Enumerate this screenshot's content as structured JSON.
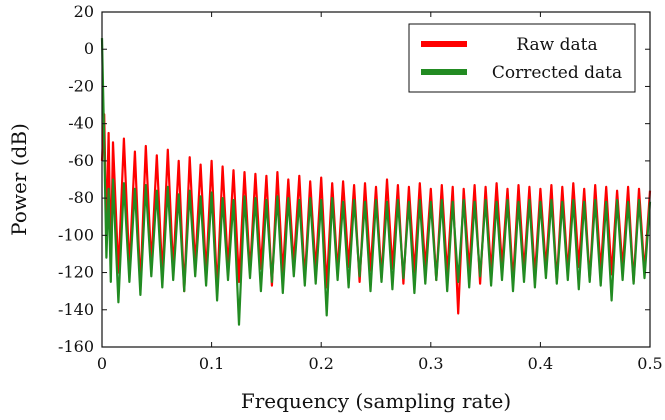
{
  "chart_data": {
    "type": "line",
    "title": "",
    "xlabel": "Frequency (sampling rate)",
    "ylabel": "Power (dB)",
    "xlim": [
      0,
      0.5
    ],
    "ylim": [
      -160,
      20
    ],
    "x_ticks": [
      0,
      0.1,
      0.2,
      0.3,
      0.4,
      0.5
    ],
    "y_ticks": [
      -160,
      -140,
      -120,
      -100,
      -80,
      -60,
      -40,
      -20,
      0,
      20
    ],
    "x_tick_labels": [
      "0",
      "0.1",
      "0.2",
      "0.3",
      "0.4",
      "0.5"
    ],
    "y_tick_labels": [
      "-160",
      "-140",
      "-120",
      "-100",
      "-80",
      "-60",
      "-40",
      "-20",
      "0",
      "20"
    ],
    "grid": false,
    "legend_position": "top-right",
    "series": [
      {
        "name": "Raw data",
        "color": "#ff0000",
        "x": [
          0,
          0.002,
          0.004,
          0.006,
          0.008,
          0.01,
          0.015,
          0.02,
          0.025,
          0.03,
          0.035,
          0.04,
          0.045,
          0.05,
          0.055,
          0.06,
          0.065,
          0.07,
          0.075,
          0.08,
          0.085,
          0.09,
          0.095,
          0.1,
          0.105,
          0.11,
          0.115,
          0.12,
          0.125,
          0.13,
          0.135,
          0.14,
          0.145,
          0.15,
          0.155,
          0.16,
          0.165,
          0.17,
          0.175,
          0.18,
          0.185,
          0.19,
          0.195,
          0.2,
          0.205,
          0.21,
          0.215,
          0.22,
          0.225,
          0.23,
          0.235,
          0.24,
          0.245,
          0.25,
          0.255,
          0.26,
          0.265,
          0.27,
          0.275,
          0.28,
          0.285,
          0.29,
          0.295,
          0.3,
          0.305,
          0.31,
          0.315,
          0.32,
          0.325,
          0.33,
          0.335,
          0.34,
          0.345,
          0.35,
          0.355,
          0.36,
          0.365,
          0.37,
          0.375,
          0.38,
          0.385,
          0.39,
          0.395,
          0.4,
          0.405,
          0.41,
          0.415,
          0.42,
          0.425,
          0.43,
          0.435,
          0.44,
          0.445,
          0.45,
          0.455,
          0.46,
          0.465,
          0.47,
          0.475,
          0.48,
          0.485,
          0.49,
          0.495,
          0.5
        ],
        "y": [
          -60,
          -35,
          -100,
          -45,
          -115,
          -50,
          -120,
          -48,
          -118,
          -55,
          -128,
          -52,
          -116,
          -57,
          -122,
          -54,
          -119,
          -60,
          -130,
          -58,
          -117,
          -62,
          -121,
          -60,
          -130,
          -63,
          -118,
          -65,
          -125,
          -66,
          -120,
          -67,
          -118,
          -68,
          -127,
          -66,
          -121,
          -70,
          -116,
          -68,
          -124,
          -71,
          -119,
          -69,
          -128,
          -72,
          -120,
          -71,
          -117,
          -73,
          -125,
          -72,
          -119,
          -74,
          -123,
          -70,
          -118,
          -73,
          -126,
          -74,
          -120,
          -72,
          -118,
          -75,
          -124,
          -73,
          -121,
          -74,
          -142,
          -75,
          -119,
          -73,
          -126,
          -74,
          -120,
          -72,
          -117,
          -75,
          -125,
          -73,
          -119,
          -74,
          -122,
          -75,
          -118,
          -73,
          -125,
          -74,
          -120,
          -72,
          -117,
          -75,
          -124,
          -73,
          -119,
          -74,
          -121,
          -76,
          -118,
          -74,
          -125,
          -75,
          -120,
          -76
        ]
      },
      {
        "name": "Corrected data",
        "color": "#228b22",
        "x": [
          0,
          0.002,
          0.004,
          0.006,
          0.008,
          0.01,
          0.015,
          0.02,
          0.025,
          0.03,
          0.035,
          0.04,
          0.045,
          0.05,
          0.055,
          0.06,
          0.065,
          0.07,
          0.075,
          0.08,
          0.085,
          0.09,
          0.095,
          0.1,
          0.105,
          0.11,
          0.115,
          0.12,
          0.125,
          0.13,
          0.135,
          0.14,
          0.145,
          0.15,
          0.155,
          0.16,
          0.165,
          0.17,
          0.175,
          0.18,
          0.185,
          0.19,
          0.195,
          0.2,
          0.205,
          0.21,
          0.215,
          0.22,
          0.225,
          0.23,
          0.235,
          0.24,
          0.245,
          0.25,
          0.255,
          0.26,
          0.265,
          0.27,
          0.275,
          0.28,
          0.285,
          0.29,
          0.295,
          0.3,
          0.305,
          0.31,
          0.315,
          0.32,
          0.325,
          0.33,
          0.335,
          0.34,
          0.345,
          0.35,
          0.355,
          0.36,
          0.365,
          0.37,
          0.375,
          0.38,
          0.385,
          0.39,
          0.395,
          0.4,
          0.405,
          0.41,
          0.415,
          0.42,
          0.425,
          0.43,
          0.435,
          0.44,
          0.445,
          0.45,
          0.455,
          0.46,
          0.465,
          0.47,
          0.475,
          0.48,
          0.485,
          0.49,
          0.495,
          0.5
        ],
        "y": [
          6,
          -50,
          -112,
          -75,
          -125,
          -70,
          -136,
          -72,
          -125,
          -75,
          -132,
          -73,
          -122,
          -76,
          -128,
          -74,
          -124,
          -78,
          -130,
          -76,
          -122,
          -79,
          -127,
          -77,
          -135,
          -80,
          -124,
          -81,
          -148,
          -79,
          -123,
          -80,
          -130,
          -81,
          -125,
          -79,
          -131,
          -80,
          -122,
          -81,
          -127,
          -80,
          -126,
          -81,
          -143,
          -80,
          -124,
          -82,
          -128,
          -81,
          -122,
          -82,
          -130,
          -81,
          -125,
          -82,
          -129,
          -81,
          -123,
          -82,
          -131,
          -81,
          -126,
          -82,
          -124,
          -81,
          -130,
          -82,
          -125,
          -81,
          -128,
          -82,
          -122,
          -81,
          -127,
          -82,
          -124,
          -81,
          -130,
          -82,
          -125,
          -81,
          -128,
          -82,
          -123,
          -81,
          -126,
          -82,
          -124,
          -81,
          -129,
          -82,
          -125,
          -81,
          -127,
          -82,
          -135,
          -81,
          -124,
          -82,
          -126,
          -81,
          -123,
          -82
        ]
      }
    ]
  }
}
